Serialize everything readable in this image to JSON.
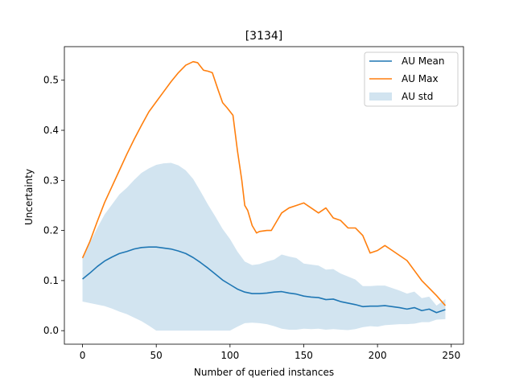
{
  "chart_data": {
    "type": "line",
    "title": "[3134]",
    "xlabel": "Number of queried instances",
    "ylabel": "Uncertainty",
    "xlim": [
      -12.3,
      258.3
    ],
    "ylim": [
      -0.027,
      0.567
    ],
    "xticks": [
      0,
      50,
      100,
      150,
      200,
      250
    ],
    "yticks": [
      0.0,
      0.1,
      0.2,
      0.3,
      0.4,
      0.5
    ],
    "xtick_labels": [
      "0",
      "50",
      "100",
      "150",
      "200",
      "250"
    ],
    "ytick_labels": [
      "0.0",
      "0.1",
      "0.2",
      "0.3",
      "0.4",
      "0.5"
    ],
    "legend_position": "top-right",
    "grid": false,
    "series": [
      {
        "name": "AU Mean",
        "color": "#1f77b4",
        "x": [
          0,
          5,
          10,
          15,
          20,
          25,
          30,
          35,
          40,
          45,
          50,
          55,
          60,
          65,
          70,
          75,
          80,
          85,
          90,
          95,
          100,
          105,
          110,
          115,
          120,
          125,
          130,
          135,
          140,
          145,
          150,
          155,
          160,
          165,
          170,
          175,
          180,
          185,
          190,
          195,
          200,
          205,
          210,
          215,
          220,
          225,
          230,
          235,
          240,
          246
        ],
        "y": [
          0.103,
          0.115,
          0.128,
          0.139,
          0.147,
          0.154,
          0.158,
          0.163,
          0.166,
          0.167,
          0.167,
          0.165,
          0.163,
          0.159,
          0.154,
          0.146,
          0.136,
          0.125,
          0.113,
          0.101,
          0.092,
          0.083,
          0.077,
          0.074,
          0.074,
          0.075,
          0.077,
          0.078,
          0.075,
          0.073,
          0.069,
          0.067,
          0.066,
          0.062,
          0.063,
          0.058,
          0.055,
          0.052,
          0.048,
          0.049,
          0.049,
          0.05,
          0.048,
          0.046,
          0.043,
          0.046,
          0.04,
          0.043,
          0.036,
          0.042
        ]
      },
      {
        "name": "AU Max",
        "color": "#ff7f0e",
        "x": [
          0,
          5,
          10,
          15,
          20,
          25,
          30,
          35,
          40,
          45,
          50,
          55,
          60,
          65,
          70,
          75,
          78,
          82,
          85,
          88,
          92,
          95,
          98,
          102,
          105,
          108,
          110,
          112,
          115,
          118,
          120,
          125,
          128,
          132,
          135,
          140,
          145,
          150,
          155,
          160,
          165,
          170,
          175,
          180,
          185,
          190,
          195,
          200,
          205,
          210,
          215,
          220,
          225,
          230,
          235,
          240,
          246
        ],
        "y": [
          0.145,
          0.178,
          0.218,
          0.256,
          0.288,
          0.32,
          0.352,
          0.382,
          0.41,
          0.437,
          0.457,
          0.477,
          0.497,
          0.515,
          0.53,
          0.537,
          0.535,
          0.52,
          0.518,
          0.515,
          0.48,
          0.455,
          0.445,
          0.43,
          0.36,
          0.3,
          0.25,
          0.24,
          0.21,
          0.195,
          0.198,
          0.2,
          0.2,
          0.22,
          0.235,
          0.245,
          0.25,
          0.255,
          0.245,
          0.235,
          0.245,
          0.225,
          0.22,
          0.205,
          0.205,
          0.19,
          0.155,
          0.16,
          0.17,
          0.16,
          0.15,
          0.14,
          0.12,
          0.1,
          0.085,
          0.07,
          0.05
        ]
      }
    ],
    "band": {
      "name": "AU std",
      "color": "#1f77b4",
      "opacity": 0.2,
      "x": [
        0,
        5,
        10,
        15,
        20,
        25,
        30,
        35,
        40,
        45,
        50,
        55,
        60,
        65,
        70,
        75,
        80,
        85,
        90,
        95,
        100,
        105,
        110,
        115,
        120,
        125,
        130,
        135,
        140,
        145,
        150,
        155,
        160,
        165,
        170,
        175,
        180,
        185,
        190,
        195,
        200,
        205,
        210,
        215,
        220,
        225,
        230,
        235,
        240,
        246
      ],
      "lower": [
        0.058,
        0.055,
        0.052,
        0.049,
        0.044,
        0.038,
        0.033,
        0.026,
        0.019,
        0.01,
        0.0,
        0.0,
        0.0,
        0.0,
        0.0,
        0.0,
        0.0,
        0.0,
        0.0,
        0.0,
        0.0,
        0.008,
        0.015,
        0.016,
        0.015,
        0.013,
        0.009,
        0.004,
        0.002,
        0.002,
        0.004,
        0.003,
        0.004,
        0.002,
        0.003,
        0.002,
        0.001,
        0.003,
        0.007,
        0.009,
        0.008,
        0.011,
        0.012,
        0.013,
        0.013,
        0.014,
        0.017,
        0.017,
        0.022,
        0.023
      ],
      "upper": [
        0.148,
        0.175,
        0.205,
        0.232,
        0.252,
        0.272,
        0.285,
        0.301,
        0.315,
        0.324,
        0.331,
        0.334,
        0.335,
        0.33,
        0.32,
        0.303,
        0.278,
        0.252,
        0.228,
        0.203,
        0.183,
        0.158,
        0.138,
        0.131,
        0.133,
        0.138,
        0.142,
        0.152,
        0.148,
        0.145,
        0.134,
        0.132,
        0.13,
        0.122,
        0.123,
        0.114,
        0.108,
        0.102,
        0.089,
        0.089,
        0.09,
        0.09,
        0.085,
        0.08,
        0.074,
        0.078,
        0.065,
        0.068,
        0.05,
        0.063
      ]
    }
  }
}
